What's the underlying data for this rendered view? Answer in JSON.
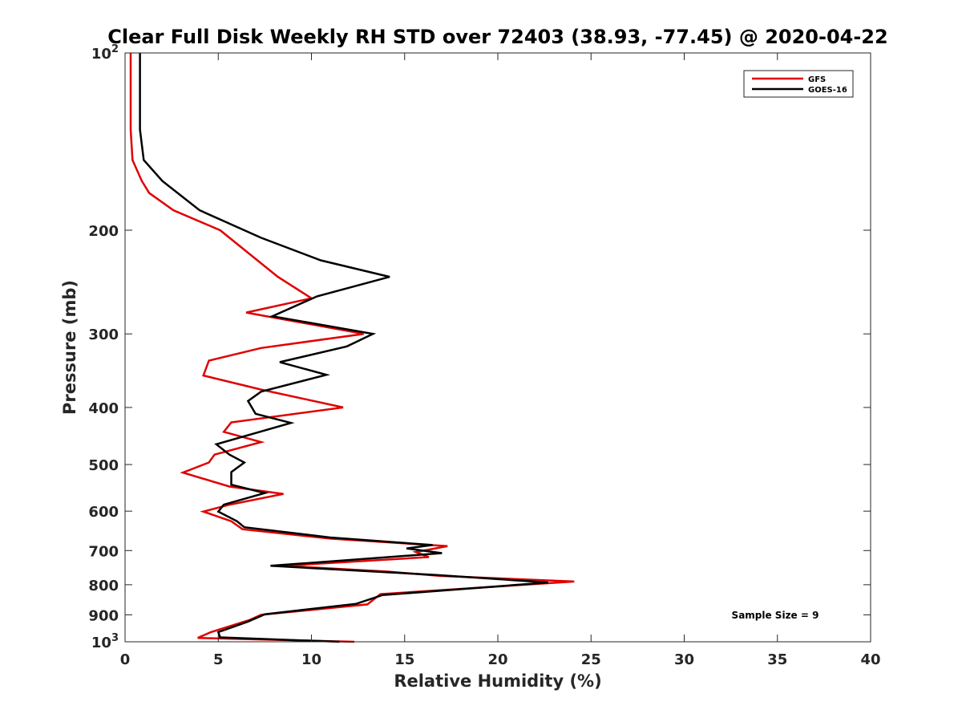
{
  "chart_data": {
    "type": "line",
    "title": "Clear Full Disk Weekly RH STD over 72403 (38.93, -77.45) @ 2020-04-22",
    "xlabel": "Relative Humidity (%)",
    "ylabel": "Pressure (mb)",
    "xlim": [
      0,
      40
    ],
    "ylim": [
      100,
      1000
    ],
    "y_scale": "log",
    "y_reversed": true,
    "x_ticks": [
      "0",
      "5",
      "10",
      "15",
      "20",
      "25",
      "30",
      "35",
      "40"
    ],
    "y_ticks": [
      {
        "value": 100,
        "base": "10",
        "exp": "2"
      },
      {
        "value": 200,
        "label": "200"
      },
      {
        "value": 300,
        "label": "300"
      },
      {
        "value": 400,
        "label": "400"
      },
      {
        "value": 500,
        "label": "500"
      },
      {
        "value": 600,
        "label": "600"
      },
      {
        "value": 700,
        "label": "700"
      },
      {
        "value": 800,
        "label": "800"
      },
      {
        "value": 900,
        "label": "900"
      },
      {
        "value": 1000,
        "base": "10",
        "exp": "3"
      }
    ],
    "grid": false,
    "legend_position": "top-right",
    "series": [
      {
        "name": "GFS",
        "color": "#e00000",
        "points": [
          [
            0.3,
            100
          ],
          [
            0.3,
            116
          ],
          [
            0.3,
            135
          ],
          [
            0.4,
            152
          ],
          [
            0.9,
            165
          ],
          [
            1.3,
            173
          ],
          [
            2.6,
            185
          ],
          [
            5.1,
            200
          ],
          [
            8.2,
            240
          ],
          [
            10.0,
            261
          ],
          [
            6.5,
            276
          ],
          [
            12.8,
            300
          ],
          [
            7.3,
            317
          ],
          [
            4.5,
            333
          ],
          [
            4.2,
            353
          ],
          [
            7.3,
            373
          ],
          [
            11.7,
            400
          ],
          [
            5.7,
            424
          ],
          [
            5.3,
            440
          ],
          [
            7.3,
            458
          ],
          [
            4.8,
            481
          ],
          [
            4.5,
            496
          ],
          [
            3.1,
            516
          ],
          [
            5.6,
            545
          ],
          [
            8.5,
            561
          ],
          [
            5.6,
            585
          ],
          [
            4.2,
            601
          ],
          [
            5.7,
            624
          ],
          [
            6.3,
            644
          ],
          [
            11.0,
            668
          ],
          [
            17.3,
            688
          ],
          [
            15.6,
            704
          ],
          [
            16.3,
            718
          ],
          [
            8.5,
            743
          ],
          [
            14.1,
            760
          ],
          [
            16.9,
            773
          ],
          [
            24.1,
            790
          ],
          [
            13.7,
            830
          ],
          [
            13.0,
            864
          ],
          [
            7.3,
            900
          ],
          [
            6.7,
            918
          ],
          [
            4.6,
            963
          ],
          [
            3.9,
            985
          ],
          [
            12.3,
            1000
          ]
        ]
      },
      {
        "name": "GOES-16",
        "color": "#000000",
        "points": [
          [
            0.8,
            100
          ],
          [
            0.8,
            116
          ],
          [
            0.8,
            135
          ],
          [
            1.0,
            152
          ],
          [
            2.0,
            165
          ],
          [
            4.0,
            185
          ],
          [
            7.3,
            206
          ],
          [
            10.5,
            225
          ],
          [
            14.2,
            240
          ],
          [
            10.3,
            259
          ],
          [
            7.9,
            280
          ],
          [
            13.3,
            300
          ],
          [
            11.9,
            315
          ],
          [
            8.3,
            335
          ],
          [
            10.8,
            352
          ],
          [
            7.3,
            376
          ],
          [
            6.6,
            390
          ],
          [
            7.0,
            410
          ],
          [
            8.9,
            425
          ],
          [
            4.9,
            462
          ],
          [
            5.6,
            481
          ],
          [
            6.4,
            496
          ],
          [
            5.7,
            515
          ],
          [
            5.7,
            541
          ],
          [
            7.5,
            559
          ],
          [
            5.3,
            585
          ],
          [
            5.0,
            601
          ],
          [
            6.0,
            624
          ],
          [
            6.4,
            639
          ],
          [
            11.0,
            665
          ],
          [
            16.5,
            685
          ],
          [
            15.1,
            694
          ],
          [
            17.0,
            707
          ],
          [
            7.8,
            743
          ],
          [
            16.7,
            770
          ],
          [
            22.7,
            793
          ],
          [
            13.8,
            833
          ],
          [
            12.4,
            862
          ],
          [
            7.5,
            898
          ],
          [
            6.6,
            924
          ],
          [
            5.0,
            963
          ],
          [
            5.1,
            983
          ],
          [
            11.5,
            1000
          ]
        ]
      }
    ],
    "annotations": [
      "Sample Size = 9"
    ]
  }
}
